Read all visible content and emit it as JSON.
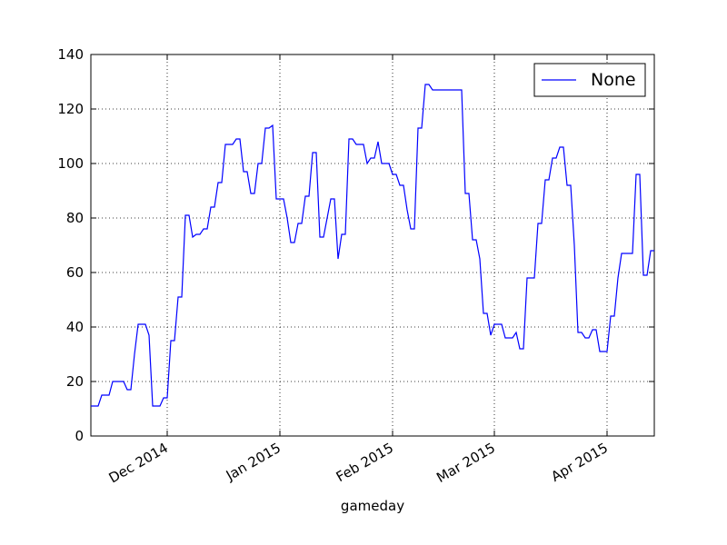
{
  "chart_data": {
    "type": "line",
    "xlabel": "gameday",
    "x": [
      "2014-11-10",
      "2014-11-12",
      "2014-11-13",
      "2014-11-15",
      "2014-11-16",
      "2014-11-19",
      "2014-11-20",
      "2014-11-21",
      "2014-11-22",
      "2014-11-23",
      "2014-11-25",
      "2014-11-26",
      "2014-11-27",
      "2014-11-29",
      "2014-11-30",
      "2014-12-01",
      "2014-12-02",
      "2014-12-03",
      "2014-12-04",
      "2014-12-05",
      "2014-12-06",
      "2014-12-07",
      "2014-12-08",
      "2014-12-09",
      "2014-12-10",
      "2014-12-11",
      "2014-12-12",
      "2014-12-13",
      "2014-12-14",
      "2014-12-15",
      "2014-12-16",
      "2014-12-17",
      "2014-12-19",
      "2014-12-20",
      "2014-12-21",
      "2014-12-22",
      "2014-12-23",
      "2014-12-24",
      "2014-12-25",
      "2014-12-26",
      "2014-12-27",
      "2014-12-28",
      "2014-12-29",
      "2014-12-30",
      "2014-12-31",
      "2015-01-02",
      "2015-01-03",
      "2015-01-04",
      "2015-01-05",
      "2015-01-06",
      "2015-01-07",
      "2015-01-08",
      "2015-01-09",
      "2015-01-10",
      "2015-01-11",
      "2015-01-12",
      "2015-01-13",
      "2015-01-14",
      "2015-01-15",
      "2015-01-16",
      "2015-01-17",
      "2015-01-18",
      "2015-01-19",
      "2015-01-20",
      "2015-01-21",
      "2015-01-22",
      "2015-01-24",
      "2015-01-25",
      "2015-01-26",
      "2015-01-27",
      "2015-01-28",
      "2015-01-29",
      "2015-01-31",
      "2015-02-01",
      "2015-02-02",
      "2015-02-03",
      "2015-02-04",
      "2015-02-05",
      "2015-02-06",
      "2015-02-07",
      "2015-02-08",
      "2015-02-09",
      "2015-02-10",
      "2015-02-11",
      "2015-02-12",
      "2015-02-20",
      "2015-02-21",
      "2015-02-22",
      "2015-02-23",
      "2015-02-24",
      "2015-02-25",
      "2015-02-26",
      "2015-02-27",
      "2015-02-28",
      "2015-03-01",
      "2015-03-03",
      "2015-03-04",
      "2015-03-06",
      "2015-03-07",
      "2015-03-08",
      "2015-03-09",
      "2015-03-10",
      "2015-03-12",
      "2015-03-13",
      "2015-03-14",
      "2015-03-15",
      "2015-03-16",
      "2015-03-17",
      "2015-03-18",
      "2015-03-19",
      "2015-03-20",
      "2015-03-21",
      "2015-03-22",
      "2015-03-23",
      "2015-03-24",
      "2015-03-25",
      "2015-03-26",
      "2015-03-27",
      "2015-03-28",
      "2015-03-29",
      "2015-03-30",
      "2015-04-01",
      "2015-04-02",
      "2015-04-03",
      "2015-04-04",
      "2015-04-05",
      "2015-04-08",
      "2015-04-09",
      "2015-04-10",
      "2015-04-11",
      "2015-04-12",
      "2015-04-13",
      "2015-04-14"
    ],
    "series": [
      {
        "name": "None",
        "color": "#0000ff",
        "values": [
          11,
          11,
          15,
          15,
          20,
          20,
          17,
          17,
          30,
          41,
          41,
          37,
          11,
          11,
          14,
          14,
          35,
          35,
          51,
          51,
          81,
          81,
          73,
          74,
          74,
          76,
          76,
          84,
          84,
          93,
          93,
          107,
          107,
          109,
          109,
          97,
          97,
          89,
          89,
          100,
          100,
          113,
          113,
          114,
          87,
          87,
          80,
          71,
          71,
          78,
          78,
          88,
          88,
          104,
          104,
          73,
          73,
          80,
          87,
          87,
          65,
          74,
          74,
          109,
          109,
          107,
          107,
          100,
          102,
          102,
          108,
          100,
          100,
          96,
          96,
          92,
          92,
          83,
          76,
          76,
          113,
          113,
          129,
          129,
          127,
          127,
          89,
          89,
          72,
          72,
          65,
          45,
          45,
          37,
          41,
          41,
          36,
          36,
          38,
          32,
          32,
          58,
          58,
          78,
          78,
          94,
          94,
          102,
          102,
          106,
          106,
          92,
          92,
          70,
          38,
          38,
          36,
          36,
          39,
          39,
          31,
          31,
          44,
          44,
          58,
          67,
          67,
          96,
          96,
          59,
          59,
          68,
          68
        ]
      }
    ],
    "xlim": [
      "2014-11-10",
      "2015-04-14"
    ],
    "xticks": [
      {
        "value": "2014-12-01",
        "label": "Dec 2014"
      },
      {
        "value": "2015-01-01",
        "label": "Jan 2015"
      },
      {
        "value": "2015-02-01",
        "label": "Feb 2015"
      },
      {
        "value": "2015-03-01",
        "label": "Mar 2015"
      },
      {
        "value": "2015-04-01",
        "label": "Apr 2015"
      }
    ],
    "ylim": [
      0,
      140
    ],
    "yticks": [
      0,
      20,
      40,
      60,
      80,
      100,
      120,
      140
    ],
    "grid": true,
    "legend": "upper right"
  }
}
